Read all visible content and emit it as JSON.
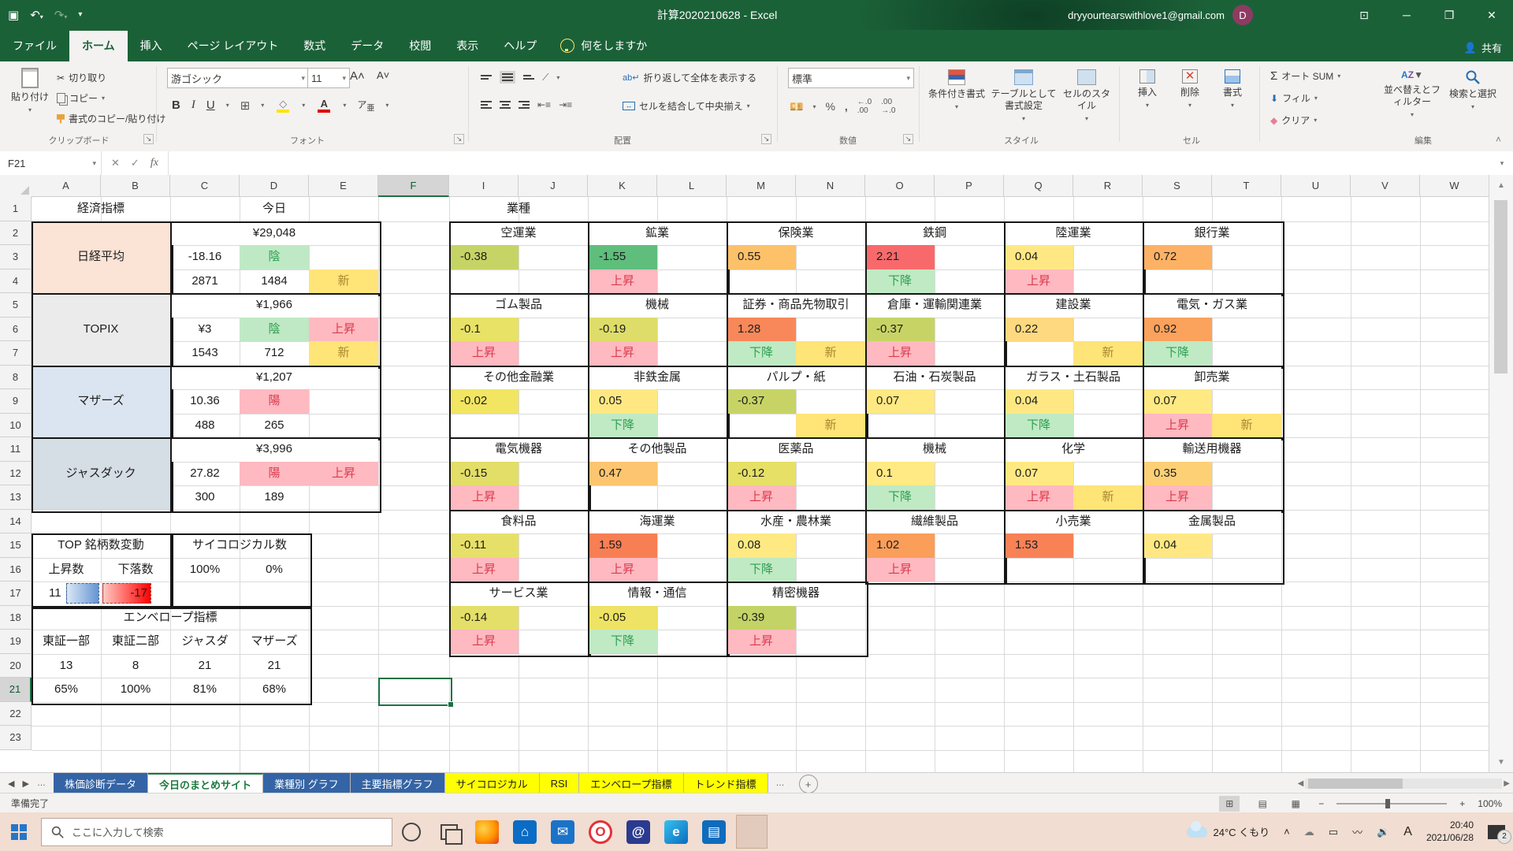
{
  "titlebar": {
    "title": "計算2020210628  -  Excel",
    "account": "dryyourtearswithlove1@gmail.com",
    "avatar_initial": "D"
  },
  "ribbon_tabs": [
    "ファイル",
    "ホーム",
    "挿入",
    "ページ レイアウト",
    "数式",
    "データ",
    "校閲",
    "表示",
    "ヘルプ"
  ],
  "active_tab": "ホーム",
  "tell_me": "何をしますか",
  "share_label": "共有",
  "ribbon": {
    "paste": "貼り付け",
    "cut": "切り取り",
    "copy": "コピー",
    "format_painter": "書式のコピー/貼り付け",
    "font_name": "游ゴシック",
    "font_size": "11",
    "wrap": "折り返して全体を表示する",
    "merge": "セルを結合して中央揃え",
    "number_format": "標準",
    "cond_format": "条件付き書式",
    "table_format": "テーブルとして書式設定",
    "cell_styles": "セルのスタイル",
    "insert": "挿入",
    "delete": "削除",
    "format": "書式",
    "autosum": "オート SUM",
    "fill": "フィル",
    "clear": "クリア",
    "sort": "並べ替えとフィルター",
    "find": "検索と選択",
    "groups": [
      "クリップボード",
      "フォント",
      "配置",
      "数値",
      "スタイル",
      "セル",
      "編集"
    ]
  },
  "formula_bar": {
    "name_box": "F21"
  },
  "sheet": {
    "columns": [
      "A",
      "B",
      "C",
      "D",
      "E",
      "F",
      "I",
      "J",
      "K",
      "L",
      "M",
      "N",
      "O",
      "P",
      "Q",
      "R",
      "S",
      "T",
      "U",
      "V",
      "W"
    ],
    "row_count": 23,
    "selected_cell": "F21",
    "selected_col": "F",
    "selected_row": 21
  },
  "left_table": {
    "header_label": "経済指標",
    "today_label": "今日",
    "blocks": [
      {
        "name": "日経平均",
        "bg": "#fbe3d6",
        "price": "¥29,048",
        "mid": [
          {
            "col": "C",
            "text": "-18.16",
            "style": ""
          },
          {
            "col": "D",
            "text": "陰",
            "style": "neg"
          }
        ],
        "bot": [
          {
            "col": "C",
            "text": "2871",
            "style": ""
          },
          {
            "col": "D",
            "text": "1484",
            "style": ""
          },
          {
            "col": "E",
            "text": "新",
            "style": "new"
          }
        ]
      },
      {
        "name": "TOPIX",
        "bg": "#ebebeb",
        "price": "¥1,966",
        "mid": [
          {
            "col": "C",
            "text": "¥3",
            "style": ""
          },
          {
            "col": "D",
            "text": "陰",
            "style": "neg"
          },
          {
            "col": "E",
            "text": "上昇",
            "style": "up"
          }
        ],
        "bot": [
          {
            "col": "C",
            "text": "1543",
            "style": ""
          },
          {
            "col": "D",
            "text": "712",
            "style": ""
          },
          {
            "col": "E",
            "text": "新",
            "style": "new"
          }
        ]
      },
      {
        "name": "マザーズ",
        "bg": "#dbe5f1",
        "price": "¥1,207",
        "mid": [
          {
            "col": "C",
            "text": "10.36",
            "style": ""
          },
          {
            "col": "D",
            "text": "陽",
            "style": "pos"
          }
        ],
        "bot": [
          {
            "col": "C",
            "text": "488",
            "style": ""
          },
          {
            "col": "D",
            "text": "265",
            "style": ""
          }
        ]
      },
      {
        "name": "ジャスダック",
        "bg": "#d5dde5",
        "price": "¥3,996",
        "mid": [
          {
            "col": "C",
            "text": "27.82",
            "style": ""
          },
          {
            "col": "D",
            "text": "陽",
            "style": "pos"
          },
          {
            "col": "E",
            "text": "上昇",
            "style": "up"
          }
        ],
        "bot": [
          {
            "col": "C",
            "text": "300",
            "style": ""
          },
          {
            "col": "D",
            "text": "189",
            "style": ""
          }
        ]
      }
    ],
    "counts": {
      "title": "TOP 銘柄数変動",
      "up_label": "上昇数",
      "down_label": "下落数",
      "up": "11",
      "down": "-17"
    },
    "psych": {
      "title": "サイコロジカル数",
      "v1": "100%",
      "v2": "0%"
    },
    "envelope": {
      "title": "エンベロープ指標",
      "headers": [
        "東証一部",
        "東証二部",
        "ジャスダ",
        "マザーズ"
      ],
      "row1": [
        "13",
        "8",
        "21",
        "21"
      ],
      "row2": [
        "65%",
        "100%",
        "81%",
        "68%"
      ]
    }
  },
  "sector_table": {
    "title": "業種",
    "bands": [
      [
        {
          "label": "空運業",
          "value": "-0.38",
          "bg": "#c6d465",
          "arrow": null,
          "new": false
        },
        {
          "label": "鉱業",
          "value": "-1.55",
          "bg": "#5fbe7c",
          "arrow": "上昇",
          "new": false
        },
        {
          "label": "保険業",
          "value": "0.55",
          "bg": "#fcc169",
          "arrow": null,
          "new": false
        },
        {
          "label": "鉄鋼",
          "value": "2.21",
          "bg": "#f8696b",
          "arrow": "下降",
          "new": false
        },
        {
          "label": "陸運業",
          "value": "0.04",
          "bg": "#ffe883",
          "arrow": "上昇",
          "new": false
        },
        {
          "label": "銀行業",
          "value": "0.72",
          "bg": "#fcb165",
          "arrow": null,
          "new": false
        }
      ],
      [
        {
          "label": "ゴム製品",
          "value": "-0.1",
          "bg": "#e8e266",
          "arrow": "上昇",
          "new": false
        },
        {
          "label": "機械",
          "value": "-0.19",
          "bg": "#dedd69",
          "arrow": "上昇",
          "new": false
        },
        {
          "label": "証券・商品先物取引",
          "value": "1.28",
          "bg": "#f8885a",
          "arrow": "下降",
          "new": true
        },
        {
          "label": "倉庫・運輸関連業",
          "value": "-0.37",
          "bg": "#c7d465",
          "arrow": "上昇",
          "new": false
        },
        {
          "label": "建設業",
          "value": "0.22",
          "bg": "#fed97f",
          "arrow": null,
          "new": true
        },
        {
          "label": "電気・ガス業",
          "value": "0.92",
          "bg": "#fba25c",
          "arrow": "下降",
          "new": false
        }
      ],
      [
        {
          "label": "その他金融業",
          "value": "-0.02",
          "bg": "#f1e561",
          "arrow": null,
          "new": false
        },
        {
          "label": "非鉄金属",
          "value": "0.05",
          "bg": "#ffe882",
          "arrow": "下降",
          "new": false
        },
        {
          "label": "パルプ・紙",
          "value": "-0.37",
          "bg": "#c7d465",
          "arrow": null,
          "new": true
        },
        {
          "label": "石油・石炭製品",
          "value": "0.07",
          "bg": "#ffe982",
          "arrow": null,
          "new": false
        },
        {
          "label": "ガラス・土石製品",
          "value": "0.04",
          "bg": "#ffe883",
          "arrow": "下降",
          "new": false
        },
        {
          "label": "卸売業",
          "value": "0.07",
          "bg": "#ffe982",
          "arrow": "上昇",
          "new": true
        }
      ],
      [
        {
          "label": "電気機器",
          "value": "-0.15",
          "bg": "#e2de68",
          "arrow": "上昇",
          "new": false
        },
        {
          "label": "その他製品",
          "value": "0.47",
          "bg": "#fdc570",
          "arrow": null,
          "new": false
        },
        {
          "label": "医薬品",
          "value": "-0.12",
          "bg": "#e6e067",
          "arrow": "上昇",
          "new": false
        },
        {
          "label": "機械",
          "value": "0.1",
          "bg": "#ffea84",
          "arrow": "下降",
          "new": false
        },
        {
          "label": "化学",
          "value": "0.07",
          "bg": "#ffe982",
          "arrow": "上昇",
          "new": true
        },
        {
          "label": "輸送用機器",
          "value": "0.35",
          "bg": "#fdd076",
          "arrow": "上昇",
          "new": false
        }
      ],
      [
        {
          "label": "食料品",
          "value": "-0.11",
          "bg": "#e7e068",
          "arrow": "上昇",
          "new": false
        },
        {
          "label": "海運業",
          "value": "1.59",
          "bg": "#f87f53",
          "arrow": "上昇",
          "new": false
        },
        {
          "label": "水産・農林業",
          "value": "0.08",
          "bg": "#ffe982",
          "arrow": "下降",
          "new": false
        },
        {
          "label": "繊維製品",
          "value": "1.02",
          "bg": "#fa9e59",
          "arrow": "上昇",
          "new": false
        },
        {
          "label": "小売業",
          "value": "1.53",
          "bg": "#f88255",
          "arrow": null,
          "new": false
        },
        {
          "label": "金属製品",
          "value": "0.04",
          "bg": "#ffe883",
          "arrow": null,
          "new": false
        }
      ],
      [
        {
          "label": "サービス業",
          "value": "-0.14",
          "bg": "#e4df68",
          "arrow": "上昇",
          "new": false
        },
        {
          "label": "情報・通信",
          "value": "-0.05",
          "bg": "#eee364",
          "arrow": "下降",
          "new": false
        },
        {
          "label": "精密機器",
          "value": "-0.39",
          "bg": "#c4d366",
          "arrow": "上昇",
          "new": false
        }
      ]
    ]
  },
  "sheet_tabs": [
    {
      "label": "株価診断データ",
      "type": "blue"
    },
    {
      "label": "今日のまとめサイト",
      "type": "active"
    },
    {
      "label": "業種別 グラフ",
      "type": "blue"
    },
    {
      "label": "主要指標グラフ",
      "type": "blue"
    },
    {
      "label": "サイコロジカル",
      "type": "yellow"
    },
    {
      "label": "RSI",
      "type": "yellow"
    },
    {
      "label": "エンベロープ指標",
      "type": "yellow"
    },
    {
      "label": "トレンド指標",
      "type": "yellow"
    }
  ],
  "status_bar": {
    "ready": "準備完了",
    "zoom": "100%"
  },
  "taskbar": {
    "search_placeholder": "ここに入力して検索",
    "apps": [
      "firefox",
      "store",
      "mail",
      "opera",
      "at-mention",
      "edge",
      "outlook",
      "excel"
    ],
    "weather": "24°C くもり",
    "ime": "A",
    "time": "20:40",
    "date": "2021/06/28",
    "notification_count": "2"
  },
  "colors": {
    "excel_green": "#1b6138",
    "accent_select": "#1e7145",
    "up_pink_bg": "#ffb9c0",
    "up_pink_text": "#d93a4e",
    "down_green_bg": "#bfeac4",
    "down_green_text": "#2f9e52",
    "new_yellow_bg": "#ffe478",
    "new_yellow_text": "#a9872f",
    "databar_blue": "#6394d2",
    "databar_red": "#ff0000"
  }
}
